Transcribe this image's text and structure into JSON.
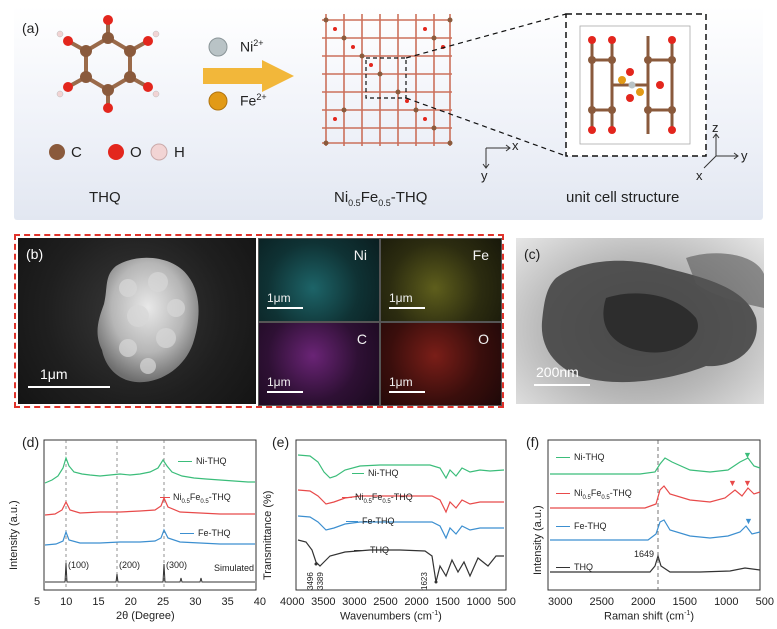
{
  "panel_a": {
    "label": "(a)",
    "ion1": "Ni",
    "ion1_charge": "2+",
    "ion2": "Fe",
    "ion2_charge": "2+",
    "legend_c": "C",
    "legend_o": "O",
    "legend_h": "H",
    "caption1": "THQ",
    "caption2_prefix": "Ni",
    "caption2_sub1": "0.5",
    "caption2_mid": "Fe",
    "caption2_sub2": "0.5",
    "caption2_suffix": "-THQ",
    "caption3": "unit cell structure",
    "axis_x": "x",
    "axis_y": "y",
    "axis_z": "z",
    "axis_x2": "x",
    "axis_y2": "y",
    "colors": {
      "carbon": "#8a5a3c",
      "oxygen": "#e3261d",
      "hydrogen": "#f2d4d4",
      "ni": "#b9c3c6",
      "fe": "#e29a16",
      "arrow": "#f2b73a"
    }
  },
  "panel_b": {
    "label": "(b)",
    "sem_scale": "1μm",
    "maps": [
      {
        "element": "Ni",
        "scale": "1μm",
        "color": "#2e9aa0"
      },
      {
        "element": "Fe",
        "scale": "1μm",
        "color": "#a8a838"
      },
      {
        "element": "C",
        "scale": "1μm",
        "color": "#8a3a98"
      },
      {
        "element": "O",
        "scale": "1μm",
        "color": "#b02a22"
      }
    ]
  },
  "panel_c": {
    "label": "(c)",
    "scale": "200nm"
  },
  "panel_d": {
    "label": "(d)",
    "ylabel": "Intensity (a.u.)",
    "xlabel": "2θ (Degree)",
    "x_ticks": [
      "5",
      "10",
      "15",
      "20",
      "25",
      "30",
      "35",
      "40"
    ],
    "series": [
      {
        "name": "Ni-THQ",
        "color": "#3bbd7a"
      },
      {
        "name": "Ni0.5Fe0.5-THQ",
        "color": "#e84a4a"
      },
      {
        "name": "Fe-THQ",
        "color": "#3c8fd0"
      },
      {
        "name": "Simulated",
        "color": "#333333"
      }
    ],
    "peak_labels": [
      "(100)",
      "(200)",
      "(300)"
    ],
    "legend_ni": "Ni-THQ",
    "legend_mix_a": "Ni",
    "legend_mix_s1": "0.5",
    "legend_mix_b": "Fe",
    "legend_mix_s2": "0.5",
    "legend_mix_c": "-THQ",
    "legend_fe": "Fe-THQ",
    "legend_sim": "Simulated"
  },
  "panel_e": {
    "label": "(e)",
    "ylabel": "Transmittance (%)",
    "xlabel": "Wavenumbers (cm",
    "xlabel_sup": "-1",
    "xlabel_end": ")",
    "x_ticks": [
      "4000",
      "3500",
      "3000",
      "2500",
      "2000",
      "1500",
      "1000",
      "500"
    ],
    "legend_ni": "Ni-THQ",
    "legend_mix_a": "Ni",
    "legend_mix_s1": "0.5",
    "legend_mix_b": "Fe",
    "legend_mix_s2": "0.5",
    "legend_mix_c": "-THQ",
    "legend_fe": "Fe-THQ",
    "legend_thq": "THQ",
    "annot1": "3496",
    "annot2": "3389",
    "annot3": "1623"
  },
  "panel_f": {
    "label": "(f)",
    "ylabel": "Intensity (a.u.)",
    "xlabel": "Raman shift (cm",
    "xlabel_sup": "-1",
    "xlabel_end": ")",
    "x_ticks": [
      "3000",
      "2500",
      "2000",
      "1500",
      "1000",
      "500"
    ],
    "legend_ni": "Ni-THQ",
    "legend_mix_a": "Ni",
    "legend_mix_s1": "0.5",
    "legend_mix_b": "Fe",
    "legend_mix_s2": "0.5",
    "legend_mix_c": "-THQ",
    "legend_fe": "Fe-THQ",
    "legend_thq": "THQ",
    "annot": "1649"
  }
}
